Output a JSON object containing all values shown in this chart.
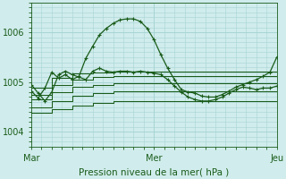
{
  "background_color": "#d0ecec",
  "grid_color": "#a8d4d4",
  "line_color": "#1a5c1a",
  "tick_label_color": "#1a5c1a",
  "xlabel": "Pression niveau de la mer( hPa )",
  "ylim": [
    1003.7,
    1006.6
  ],
  "yticks": [
    1004,
    1005,
    1006
  ],
  "xtick_labels": [
    "Mar",
    "Mer",
    "Jeu"
  ],
  "xtick_positions": [
    0,
    36,
    72
  ],
  "band_lines": [
    {
      "x": [
        0,
        6,
        12,
        18,
        24,
        30,
        36,
        42,
        48,
        54,
        60,
        66,
        72
      ],
      "y": [
        1004.88,
        1005.08,
        1005.18,
        1005.2,
        1005.22,
        1005.22,
        1005.22,
        1005.22,
        1005.22,
        1005.22,
        1005.22,
        1005.22,
        1005.22
      ]
    },
    {
      "x": [
        0,
        6,
        12,
        18,
        24,
        30,
        36,
        42,
        48,
        54,
        60,
        66,
        72
      ],
      "y": [
        1004.75,
        1004.95,
        1005.05,
        1005.1,
        1005.12,
        1005.12,
        1005.12,
        1005.12,
        1005.12,
        1005.12,
        1005.12,
        1005.12,
        1005.12
      ]
    },
    {
      "x": [
        0,
        6,
        12,
        18,
        24,
        30,
        36,
        42,
        48,
        54,
        60,
        66,
        72
      ],
      "y": [
        1004.65,
        1004.8,
        1004.9,
        1004.95,
        1004.98,
        1004.98,
        1004.98,
        1004.98,
        1004.98,
        1004.98,
        1004.98,
        1004.98,
        1004.98
      ]
    },
    {
      "x": [
        0,
        6,
        12,
        18,
        24,
        30,
        36,
        42,
        48,
        54,
        60,
        66,
        72
      ],
      "y": [
        1004.5,
        1004.62,
        1004.72,
        1004.78,
        1004.82,
        1004.82,
        1004.82,
        1004.82,
        1004.82,
        1004.82,
        1004.82,
        1004.82,
        1004.82
      ]
    },
    {
      "x": [
        0,
        6,
        12,
        18,
        24,
        30,
        36,
        42,
        48,
        54,
        60,
        66,
        72
      ],
      "y": [
        1004.38,
        1004.45,
        1004.52,
        1004.58,
        1004.62,
        1004.62,
        1004.62,
        1004.62,
        1004.62,
        1004.62,
        1004.62,
        1004.62,
        1004.62
      ]
    }
  ],
  "zigzag_x": [
    0,
    2,
    4,
    6,
    8,
    10,
    12,
    14,
    16,
    18,
    20,
    22,
    24,
    26,
    28,
    30,
    32,
    34,
    36,
    38,
    40,
    42,
    44,
    46,
    48,
    50,
    52,
    54,
    56,
    58,
    60,
    62,
    64,
    66,
    68,
    70,
    72
  ],
  "zigzag_y": [
    1004.82,
    1004.68,
    1004.88,
    1005.2,
    1005.08,
    1005.15,
    1005.05,
    1005.12,
    1005.48,
    1005.72,
    1005.95,
    1006.08,
    1006.18,
    1006.25,
    1006.27,
    1006.27,
    1006.22,
    1006.08,
    1005.85,
    1005.55,
    1005.28,
    1005.05,
    1004.85,
    1004.8,
    1004.78,
    1004.72,
    1004.7,
    1004.7,
    1004.75,
    1004.82,
    1004.9,
    1004.95,
    1005.0,
    1005.05,
    1005.12,
    1005.2,
    1005.5
  ],
  "wiggly_x": [
    0,
    2,
    4,
    6,
    8,
    10,
    12,
    14,
    16,
    18,
    20,
    22,
    24,
    26,
    28,
    30,
    32,
    34,
    36,
    38,
    40,
    42,
    44,
    46,
    48,
    50,
    52,
    54,
    56,
    58,
    60,
    62,
    64,
    66,
    68,
    70,
    72
  ],
  "wiggly_y": [
    1004.95,
    1004.78,
    1004.62,
    1004.8,
    1005.15,
    1005.22,
    1005.15,
    1005.1,
    1005.05,
    1005.22,
    1005.28,
    1005.22,
    1005.2,
    1005.22,
    1005.22,
    1005.2,
    1005.22,
    1005.2,
    1005.18,
    1005.15,
    1005.05,
    1004.92,
    1004.8,
    1004.7,
    1004.65,
    1004.62,
    1004.62,
    1004.65,
    1004.7,
    1004.78,
    1004.85,
    1004.9,
    1004.88,
    1004.85,
    1004.88,
    1004.88,
    1004.92
  ]
}
